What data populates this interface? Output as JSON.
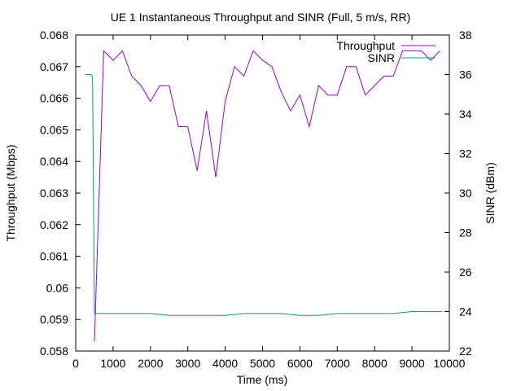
{
  "chart_data": {
    "type": "line",
    "title": "UE 1 Instantaneous Throughput and SINR (Full, 5 m/s, RR)",
    "xlabel": "Time (ms)",
    "ylabel": "Throughput (Mbps)",
    "y2label": "SINR (dBm)",
    "xlim": [
      0,
      10000
    ],
    "ylim": [
      0.058,
      0.068
    ],
    "y2lim": [
      22,
      38
    ],
    "xticks": [
      0,
      1000,
      2000,
      3000,
      4000,
      5000,
      6000,
      7000,
      8000,
      9000,
      10000
    ],
    "yticks": [
      "0.058",
      "0.059",
      "0.06",
      "0.061",
      "0.062",
      "0.063",
      "0.064",
      "0.065",
      "0.066",
      "0.067",
      "0.068"
    ],
    "y2ticks": [
      22,
      24,
      26,
      28,
      30,
      32,
      34,
      36,
      38
    ],
    "grid": false,
    "legend": "top-right",
    "series": [
      {
        "name": "Throughput",
        "axis": "left",
        "color": "#9400d3",
        "x": [
          500,
          750,
          1000,
          1250,
          1500,
          1750,
          2000,
          2250,
          2500,
          2750,
          3000,
          3250,
          3500,
          3750,
          4000,
          4250,
          4500,
          4750,
          5000,
          5250,
          5500,
          5750,
          6000,
          6250,
          6500,
          6750,
          7000,
          7250,
          7500,
          7750,
          8000,
          8250,
          8500,
          8750,
          9000,
          9250,
          9500,
          9750
        ],
        "y": [
          0.0583,
          0.0675,
          0.0672,
          0.0675,
          0.0667,
          0.0664,
          0.0659,
          0.0664,
          0.0664,
          0.0651,
          0.0651,
          0.0637,
          0.0656,
          0.0635,
          0.0659,
          0.067,
          0.0667,
          0.0675,
          0.0672,
          0.067,
          0.0662,
          0.0656,
          0.0661,
          0.0651,
          0.0664,
          0.0661,
          0.0661,
          0.067,
          0.067,
          0.0661,
          0.0664,
          0.0667,
          0.0667,
          0.0675,
          0.0675,
          0.0675,
          0.0672,
          0.0675
        ]
      },
      {
        "name": "SINR",
        "axis": "right",
        "color": "#009e73",
        "x": [
          250,
          400,
          450,
          500,
          750,
          1000,
          1500,
          2000,
          2500,
          3000,
          3500,
          4000,
          4500,
          5000,
          5500,
          6000,
          6500,
          7000,
          7500,
          8000,
          8500,
          9000,
          9500,
          9800
        ],
        "y": [
          36.0,
          36.0,
          35.9,
          23.9,
          23.9,
          23.9,
          23.9,
          23.9,
          23.8,
          23.8,
          23.8,
          23.8,
          23.9,
          23.9,
          23.9,
          23.8,
          23.8,
          23.9,
          23.9,
          23.9,
          23.9,
          24.0,
          24.0,
          24.0
        ]
      }
    ]
  }
}
